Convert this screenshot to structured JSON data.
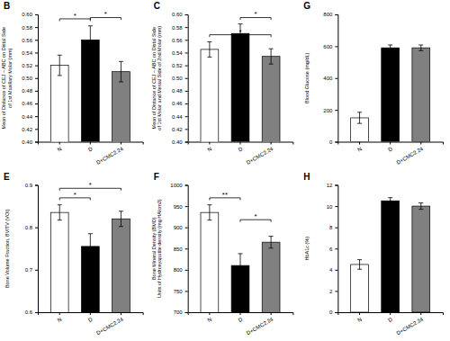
{
  "chart_data": [
    {
      "type": "bar",
      "title": "B",
      "ylabel": "Mean of Distance of CEJ – ABC on Distal Side\nof 1st Maxillary Molar  (mm)",
      "categories": [
        "N",
        "D",
        "D+CMC2.24"
      ],
      "values": [
        0.52,
        0.56,
        0.51
      ],
      "errors": [
        0.016,
        0.022,
        0.016
      ],
      "colors": [
        "white",
        "black",
        "gray"
      ],
      "ylim": [
        0.4,
        0.6
      ],
      "yticks": [
        {
          "value": 0.4,
          "label": "0.40"
        },
        0.42,
        0.44,
        0.46,
        0.48,
        {
          "value": 0.5,
          "label": "0.50"
        },
        0.52,
        0.54,
        0.56,
        0.58,
        {
          "value": 0.6,
          "label": "0.60"
        }
      ],
      "annotations": [
        {
          "pair": [
            0,
            1
          ],
          "label": "*"
        },
        {
          "pair": [
            1,
            2
          ],
          "label": "*"
        }
      ]
    },
    {
      "type": "bar",
      "title": "C",
      "ylabel": "Mean of Distance of CEJ – ABC on Distal Side\nof 1st Molar and Mesial Side of 2nd Molar (mm)",
      "categories": [
        "N",
        "D",
        "D+CMC2.24"
      ],
      "values": [
        0.545,
        0.57,
        0.534
      ],
      "errors": [
        0.012,
        0.015,
        0.012
      ],
      "colors": [
        "white",
        "black",
        "gray"
      ],
      "ylim": [
        0.4,
        0.6
      ],
      "yticks": [
        {
          "value": 0.4,
          "label": "0.40"
        },
        0.42,
        0.44,
        0.46,
        0.48,
        {
          "value": 0.5,
          "label": "0.50"
        },
        0.52,
        0.54,
        0.56,
        0.58,
        {
          "value": 0.6,
          "label": "0.60"
        }
      ],
      "annotations": [
        {
          "pair": [
            0,
            2
          ],
          "label": "*"
        },
        {
          "pair": [
            1,
            2
          ],
          "label": "*"
        }
      ]
    },
    {
      "type": "bar",
      "title": "G",
      "ylabel": "Blood Glucose (mg/dL)",
      "categories": [
        "N",
        "D",
        "D+CMC2.24"
      ],
      "values": [
        150.0,
        590.0,
        590.0
      ],
      "errors": [
        35.0,
        18.0,
        18.0
      ],
      "colors": [
        "white",
        "black",
        "gray"
      ],
      "ylim": [
        0,
        800
      ],
      "yticks": [
        0,
        200,
        400,
        600,
        800
      ]
    },
    {
      "type": "bar",
      "title": "E",
      "ylabel": "Bone Volume Fraction, BV/TV (VOI)",
      "categories": [
        "N",
        "D",
        "D+CMC2.24"
      ],
      "values": [
        0.835,
        0.755,
        0.82
      ],
      "errors": [
        0.018,
        0.03,
        0.018
      ],
      "colors": [
        "white",
        "black",
        "gray"
      ],
      "ylim": [
        0.6,
        0.9
      ],
      "yticks": [
        0.6,
        0.7,
        0.8,
        0.9
      ],
      "annotations": [
        {
          "pair": [
            0,
            1
          ],
          "label": "*"
        },
        {
          "pair": [
            0,
            2
          ],
          "label": "*"
        }
      ]
    },
    {
      "type": "bar",
      "title": "F",
      "ylabel": "Bone Mineral Density (BMD)\nUnits of Hydroxyapatite density (mg HA/cm3)",
      "categories": [
        "N",
        "D",
        "D+CMC2.24"
      ],
      "values": [
        935.0,
        810.0,
        865.0
      ],
      "errors": [
        18.0,
        28.0,
        14.0
      ],
      "colors": [
        "white",
        "black",
        "gray"
      ],
      "ylim": [
        700.0,
        1000.0
      ],
      "yticks": [
        700,
        750,
        800,
        850,
        900,
        950,
        1000
      ],
      "annotations": [
        {
          "pair": [
            0,
            1
          ],
          "label": "**"
        },
        {
          "pair": [
            1,
            2
          ],
          "label": "*"
        }
      ]
    },
    {
      "type": "bar",
      "title": "H",
      "ylabel": "HbA1c (%)",
      "categories": [
        "N",
        "D",
        "D+CMC2.24"
      ],
      "values": [
        4.5,
        10.5,
        10.0
      ],
      "errors": [
        0.45,
        0.3,
        0.3
      ],
      "colors": [
        "white",
        "black",
        "gray"
      ],
      "ylim": [
        0,
        12
      ],
      "yticks": [
        0,
        2,
        4,
        6,
        8,
        10,
        12
      ]
    }
  ]
}
